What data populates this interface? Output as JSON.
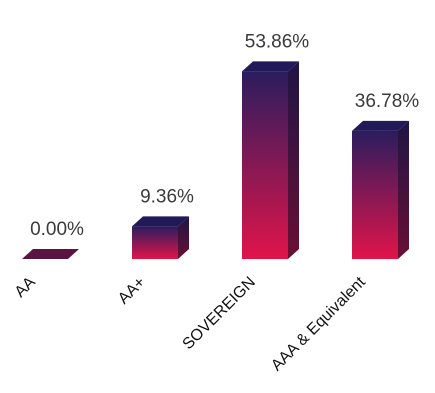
{
  "chart_data": {
    "type": "bar",
    "style": "3d-column",
    "title": "",
    "xlabel": "",
    "ylabel": "",
    "categories": [
      "AA",
      "AA+",
      "SOVEREIGN",
      "AAA & Equivalent"
    ],
    "values": [
      0.0,
      9.36,
      53.86,
      36.78
    ],
    "value_labels": [
      "0.00%",
      "9.36%",
      "53.86%",
      "36.78%"
    ],
    "ylim": [
      0,
      60
    ],
    "grid": false,
    "legend": "none",
    "colors": {
      "bar_top": "#2b1d5e",
      "bar_bottom": "#e0144a",
      "side_dark": "#3a1440",
      "top_face": "#1f1a55"
    }
  }
}
